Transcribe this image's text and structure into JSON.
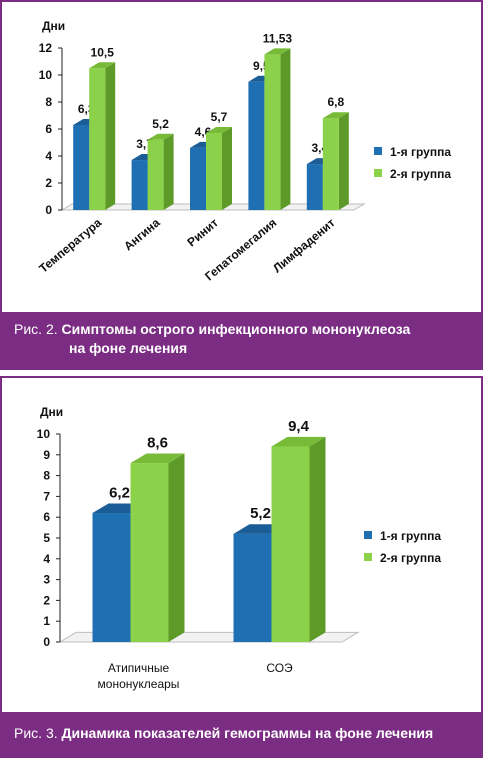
{
  "colors": {
    "accent": "#7b2d83",
    "series1_front": "#1f6fb3",
    "series1_top": "#1b5d97",
    "series1_side": "#144a7c",
    "series2_front": "#8cd14a",
    "series2_top": "#77bb38",
    "series2_side": "#5e9a28"
  },
  "figure1": {
    "caption_lead": "Рис. 2.",
    "caption_title_line1": "Симптомы острого инфекционного мононуклеоза",
    "caption_title_line2": "на фоне лечения"
  },
  "figure2": {
    "caption_lead": "Рис. 3.",
    "caption_title": "Динамика показателей гемограммы на фоне лечения"
  },
  "chart_data": [
    {
      "type": "bar",
      "ylabel": "Дни",
      "ylim": [
        0,
        12
      ],
      "yticks": [
        "0",
        "2",
        "4",
        "6",
        "8",
        "10",
        "12"
      ],
      "categories": [
        "Температура",
        "Ангина",
        "Ринит",
        "Гепатомегалия",
        "Лимфаденит"
      ],
      "series": [
        {
          "name": "1-я группа",
          "values": [
            6.3,
            3.7,
            4.6,
            9.5,
            3.4
          ],
          "labels": [
            "6,3",
            "3,7",
            "4,6",
            "9,5",
            "3,4"
          ]
        },
        {
          "name": "2-я группа",
          "values": [
            10.5,
            5.2,
            5.7,
            11.53,
            6.8
          ],
          "labels": [
            "10,5",
            "5,2",
            "5,7",
            "11,53",
            "6,8"
          ]
        }
      ],
      "legend": "right",
      "grid": false
    },
    {
      "type": "bar",
      "ylabel": "Дни",
      "ylim": [
        0,
        10
      ],
      "yticks": [
        "0",
        "1",
        "2",
        "3",
        "4",
        "5",
        "6",
        "7",
        "8",
        "9",
        "10"
      ],
      "categories": [
        "Атипичные мононуклеары",
        "СОЭ"
      ],
      "series": [
        {
          "name": "1-я группа",
          "values": [
            6.2,
            5.2
          ],
          "labels": [
            "6,2",
            "5,2"
          ]
        },
        {
          "name": "2-я группа",
          "values": [
            8.6,
            9.4
          ],
          "labels": [
            "8,6",
            "9,4"
          ]
        }
      ],
      "legend": "right",
      "grid": false
    }
  ]
}
